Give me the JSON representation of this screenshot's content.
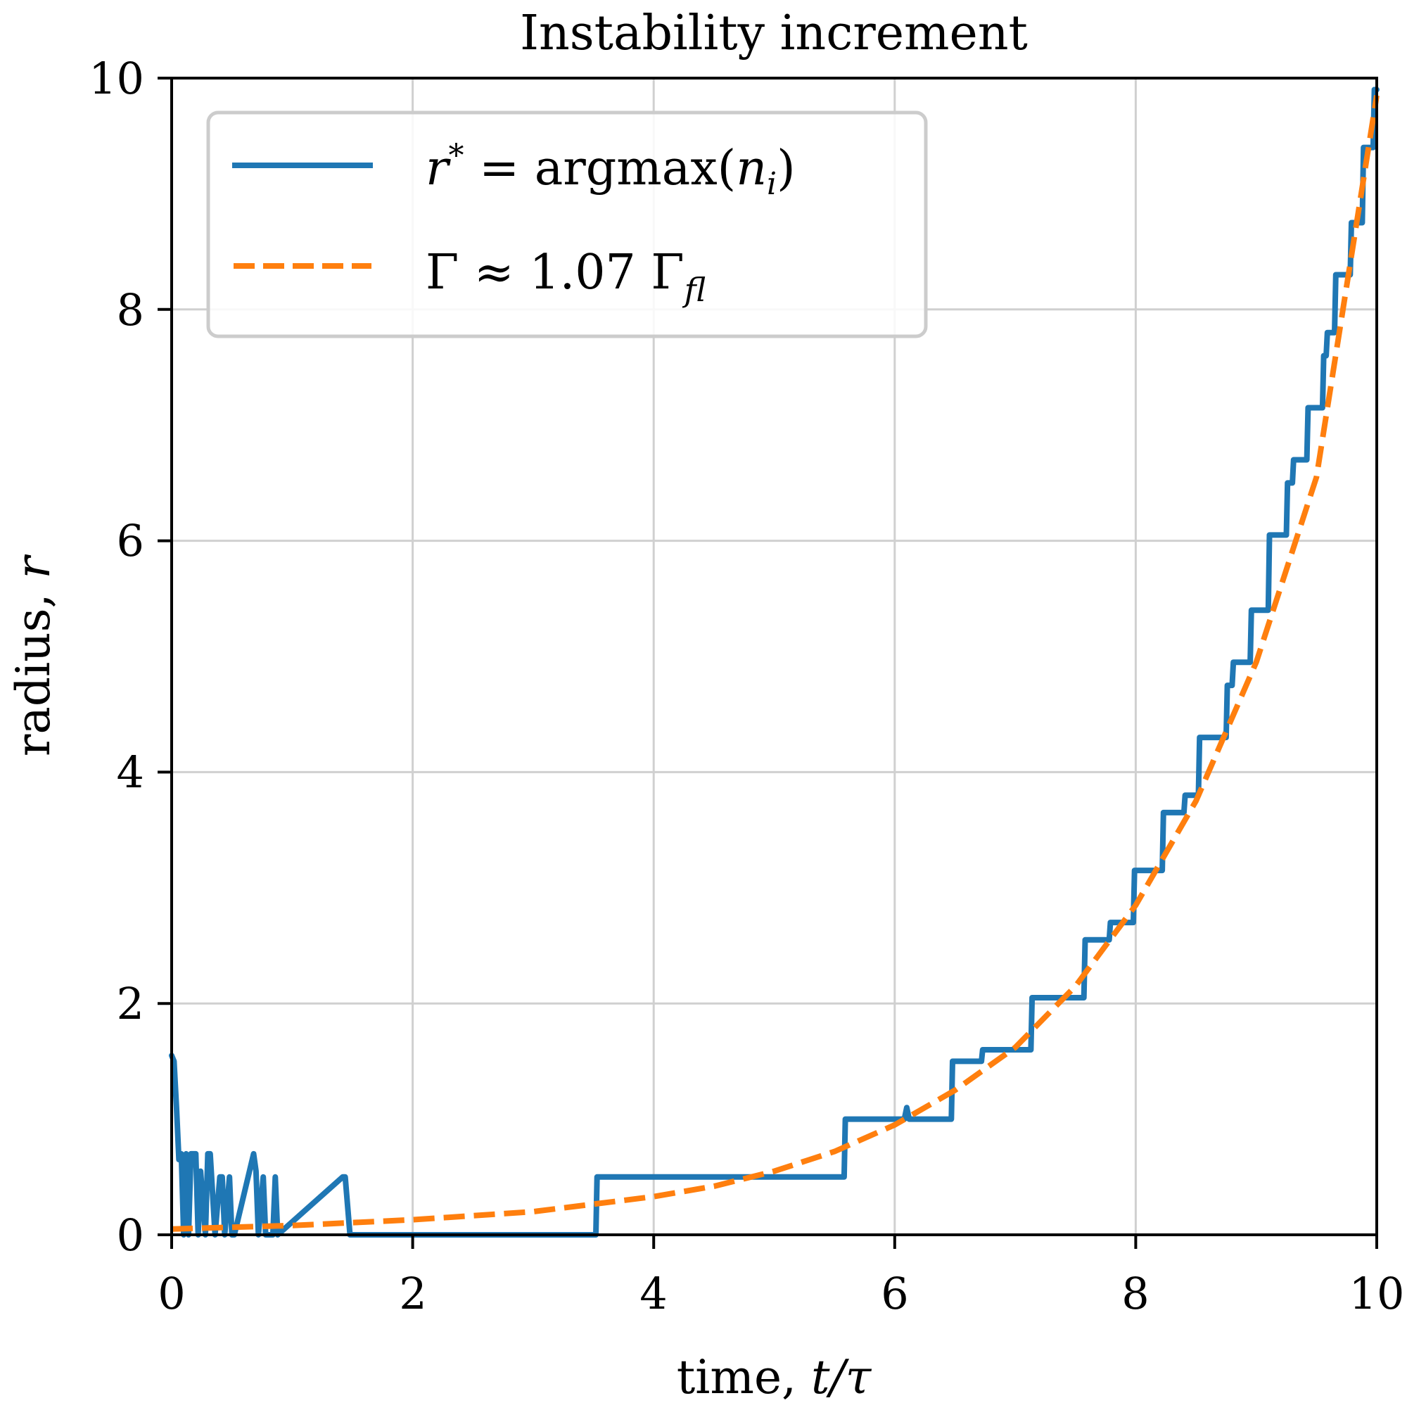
{
  "chart_data": {
    "type": "line",
    "title": "Instability increment",
    "xlabel": "time, t/τ",
    "ylabel": "radius, r",
    "xlim": [
      0,
      10
    ],
    "ylim": [
      0,
      10
    ],
    "xticks": [
      0,
      2,
      4,
      6,
      8,
      10
    ],
    "yticks": [
      0,
      2,
      4,
      6,
      8,
      10
    ],
    "grid": true,
    "legend_position": "upper left",
    "series": [
      {
        "name": "r* = argmax(n_i)",
        "color": "#1f77b4",
        "style": "solid-step",
        "x": [
          0,
          0.02,
          0.04,
          0.06,
          0.08,
          0.1,
          0.12,
          0.14,
          0.16,
          0.2,
          0.22,
          0.24,
          0.28,
          0.3,
          0.32,
          0.36,
          0.4,
          0.42,
          0.44,
          0.48,
          0.5,
          0.52,
          0.68,
          0.7,
          0.72,
          0.76,
          0.78,
          0.84,
          0.86,
          0.88,
          1.42,
          1.44,
          1.48,
          1.5,
          3.52,
          3.53,
          5.58,
          5.59,
          6.08,
          6.1,
          6.12,
          6.47,
          6.48,
          6.72,
          6.73,
          7.13,
          7.14,
          7.57,
          7.58,
          7.78,
          7.79,
          7.98,
          7.99,
          8.22,
          8.23,
          8.4,
          8.41,
          8.52,
          8.53,
          8.75,
          8.76,
          8.8,
          8.81,
          8.95,
          8.96,
          9.1,
          9.11,
          9.25,
          9.26,
          9.3,
          9.31,
          9.42,
          9.43,
          9.55,
          9.56,
          9.58,
          9.59,
          9.65,
          9.66,
          9.78,
          9.79,
          9.88,
          9.89,
          9.97,
          9.98,
          10
        ],
        "y": [
          1.55,
          1.5,
          1.1,
          0.65,
          0.7,
          0.0,
          0.7,
          0.0,
          0.7,
          0.7,
          0.0,
          0.55,
          0.0,
          0.7,
          0.7,
          0.0,
          0.5,
          0.5,
          0.0,
          0.5,
          0.0,
          0.0,
          0.7,
          0.55,
          0.0,
          0.5,
          0.0,
          0.0,
          0.5,
          0.0,
          0.5,
          0.5,
          0.0,
          0.0,
          0.0,
          0.5,
          0.5,
          1.0,
          1.0,
          1.1,
          1.0,
          1.0,
          1.5,
          1.5,
          1.6,
          1.6,
          2.05,
          2.05,
          2.55,
          2.55,
          2.7,
          2.7,
          3.15,
          3.15,
          3.65,
          3.65,
          3.8,
          3.8,
          4.3,
          4.3,
          4.75,
          4.75,
          4.95,
          4.95,
          5.4,
          5.4,
          6.05,
          6.05,
          6.5,
          6.5,
          6.7,
          6.7,
          7.15,
          7.15,
          7.6,
          7.6,
          7.8,
          7.8,
          8.3,
          8.3,
          8.75,
          8.75,
          9.4,
          9.4,
          9.9,
          9.9
        ]
      },
      {
        "name": "Γ ≈ 1.07 Γ_fl",
        "color": "#ff7f0e",
        "style": "dashed",
        "x": [
          0,
          1,
          2,
          3,
          4,
          4.5,
          5,
          5.5,
          6,
          6.5,
          7,
          7.5,
          8,
          8.5,
          9,
          9.5,
          10
        ],
        "y": [
          0.05,
          0.08,
          0.13,
          0.2,
          0.33,
          0.42,
          0.55,
          0.72,
          0.95,
          1.25,
          1.62,
          2.15,
          2.85,
          3.75,
          4.95,
          6.55,
          9.85
        ]
      }
    ]
  },
  "legend": {
    "item1": {
      "lhs": "r",
      "sup": "*",
      "eq": " = argmax(",
      "var": "n",
      "sub": "i",
      "close": ")"
    },
    "item2": {
      "lhs": "Γ ≈ 1.07 Γ",
      "sub": "fl"
    }
  },
  "labels": {
    "title": "Instability increment",
    "xlabel_text": "time, ",
    "xlabel_math": "t/τ",
    "ylabel_text": "radius, ",
    "ylabel_math": "r"
  },
  "ticks": {
    "x": [
      "0",
      "2",
      "4",
      "6",
      "8",
      "10"
    ],
    "y": [
      "0",
      "2",
      "4",
      "6",
      "8",
      "10"
    ]
  }
}
